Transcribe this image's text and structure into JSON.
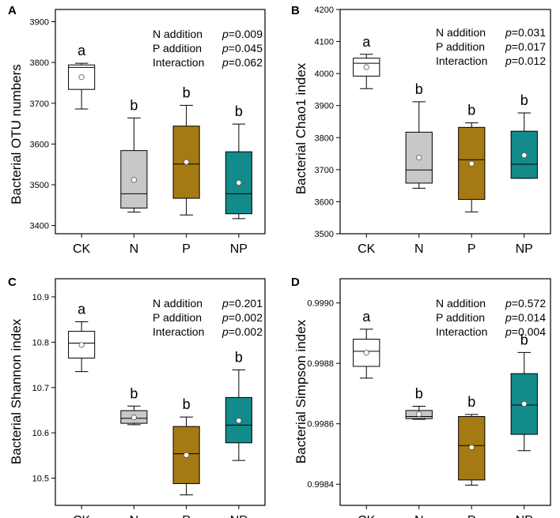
{
  "colors": {
    "CK": "#ffffff",
    "N": "#c8c8c8",
    "P": "#a57a12",
    "NP": "#138b8b",
    "outline": "#000000"
  },
  "stat_terms": [
    "N addition",
    "P addition",
    "Interaction"
  ],
  "chart_data": [
    {
      "type": "boxplot",
      "panel": "A",
      "title": "",
      "xlabel": "",
      "ylabel": "Bacterial OTU numbers",
      "ylim": [
        3380,
        3930
      ],
      "yticks": [
        3400,
        3500,
        3600,
        3700,
        3800,
        3900
      ],
      "ytick_labels": [
        "3400",
        "3500",
        "3600",
        "3700",
        "3800",
        "3900"
      ],
      "categories": [
        "CK",
        "N",
        "P",
        "NP"
      ],
      "boxes": [
        {
          "group": "CK",
          "whislo": 3686,
          "q1": 3734,
          "med": 3788,
          "q3": 3794,
          "whishi": 3798,
          "mean": 3764,
          "letter": "a"
        },
        {
          "group": "N",
          "whislo": 3433,
          "q1": 3443,
          "med": 3478,
          "q3": 3584,
          "whishi": 3664,
          "mean": 3512,
          "letter": "b"
        },
        {
          "group": "P",
          "whislo": 3426,
          "q1": 3467,
          "med": 3551,
          "q3": 3644,
          "whishi": 3695,
          "mean": 3556,
          "letter": "b"
        },
        {
          "group": "NP",
          "whislo": 3417,
          "q1": 3429,
          "med": 3478,
          "q3": 3581,
          "whishi": 3649,
          "mean": 3505,
          "letter": "b"
        }
      ],
      "stats": [
        {
          "term": "N addition",
          "p_label": "p",
          "p_value": "=0.009"
        },
        {
          "term": "P addition",
          "p_label": "p",
          "p_value": "=0.045"
        },
        {
          "term": "Interaction",
          "p_label": "p",
          "p_value": "=0.062"
        }
      ]
    },
    {
      "type": "boxplot",
      "panel": "B",
      "title": "",
      "xlabel": "",
      "ylabel": "Bacterial Chao1 index",
      "ylim": [
        3500,
        4200
      ],
      "yticks": [
        3500,
        3600,
        3700,
        3800,
        3900,
        4000,
        4100,
        4200
      ],
      "ytick_labels": [
        "3500",
        "3600",
        "3700",
        "3800",
        "3900",
        "4000",
        "4100",
        "4200"
      ],
      "categories": [
        "CK",
        "N",
        "P",
        "NP"
      ],
      "boxes": [
        {
          "group": "CK",
          "whislo": 3953,
          "q1": 3992,
          "med": 4032,
          "q3": 4048,
          "whishi": 4060,
          "mean": 4020,
          "letter": "a"
        },
        {
          "group": "N",
          "whislo": 3642,
          "q1": 3658,
          "med": 3699,
          "q3": 3817,
          "whishi": 3912,
          "mean": 3738,
          "letter": "b"
        },
        {
          "group": "P",
          "whislo": 3568,
          "q1": 3607,
          "med": 3731,
          "q3": 3832,
          "whishi": 3846,
          "mean": 3719,
          "letter": "b"
        },
        {
          "group": "NP",
          "whislo": 3673,
          "q1": 3673,
          "med": 3717,
          "q3": 3820,
          "whishi": 3877,
          "mean": 3745,
          "letter": "b"
        }
      ],
      "stats": [
        {
          "term": "N addition",
          "p_label": "p",
          "p_value": "=0.031"
        },
        {
          "term": "P addition",
          "p_label": "p",
          "p_value": "=0.017"
        },
        {
          "term": "Interaction",
          "p_label": "p",
          "p_value": "=0.012"
        }
      ]
    },
    {
      "type": "boxplot",
      "panel": "C",
      "title": "",
      "xlabel": "",
      "ylabel": "Bacterial Shannon index",
      "ylim": [
        10.44,
        10.94
      ],
      "yticks": [
        10.5,
        10.6,
        10.7,
        10.8,
        10.9
      ],
      "ytick_labels": [
        "10.5",
        "10.6",
        "10.7",
        "10.8",
        "10.9"
      ],
      "categories": [
        "CK",
        "N",
        "P",
        "NP"
      ],
      "boxes": [
        {
          "group": "CK",
          "whislo": 10.735,
          "q1": 10.765,
          "med": 10.798,
          "q3": 10.824,
          "whishi": 10.845,
          "mean": 10.794,
          "letter": "a"
        },
        {
          "group": "N",
          "whislo": 10.618,
          "q1": 10.621,
          "med": 10.632,
          "q3": 10.649,
          "whishi": 10.659,
          "mean": 10.634,
          "letter": "b"
        },
        {
          "group": "P",
          "whislo": 10.463,
          "q1": 10.488,
          "med": 10.554,
          "q3": 10.614,
          "whishi": 10.635,
          "mean": 10.551,
          "letter": "b"
        },
        {
          "group": "NP",
          "whislo": 10.539,
          "q1": 10.578,
          "med": 10.617,
          "q3": 10.678,
          "whishi": 10.739,
          "mean": 10.627,
          "letter": "b"
        }
      ],
      "stats": [
        {
          "term": "N addition",
          "p_label": "p",
          "p_value": "=0.201"
        },
        {
          "term": "P addition",
          "p_label": "p",
          "p_value": "=0.002"
        },
        {
          "term": "Interaction",
          "p_label": "p",
          "p_value": "=0.002"
        }
      ]
    },
    {
      "type": "boxplot",
      "panel": "D",
      "title": "",
      "xlabel": "",
      "ylabel": "Bacterial Simpson index",
      "ylim": [
        0.99833,
        0.99908
      ],
      "yticks": [
        0.9984,
        0.9986,
        0.9988,
        0.999
      ],
      "ytick_labels": [
        "0.9984",
        "0.9986",
        "0.9988",
        "0.9990"
      ],
      "categories": [
        "CK",
        "N",
        "P",
        "NP"
      ],
      "boxes": [
        {
          "group": "CK",
          "whislo": 0.998751,
          "q1": 0.99879,
          "med": 0.99884,
          "q3": 0.99888,
          "whishi": 0.998913,
          "mean": 0.998835,
          "letter": "a"
        },
        {
          "group": "N",
          "whislo": 0.998615,
          "q1": 0.998617,
          "med": 0.998624,
          "q3": 0.998644,
          "whishi": 0.998658,
          "mean": 0.998632,
          "letter": "b"
        },
        {
          "group": "P",
          "whislo": 0.998397,
          "q1": 0.998414,
          "med": 0.998528,
          "q3": 0.998624,
          "whishi": 0.998631,
          "mean": 0.998522,
          "letter": "b"
        },
        {
          "group": "NP",
          "whislo": 0.998511,
          "q1": 0.998565,
          "med": 0.998662,
          "q3": 0.998766,
          "whishi": 0.998836,
          "mean": 0.998666,
          "letter": "b"
        }
      ],
      "stats": [
        {
          "term": "N addition",
          "p_label": "p",
          "p_value": "=0.572"
        },
        {
          "term": "P addition",
          "p_label": "p",
          "p_value": "=0.014"
        },
        {
          "term": "Interaction",
          "p_label": "p",
          "p_value": "=0.004"
        }
      ]
    }
  ]
}
